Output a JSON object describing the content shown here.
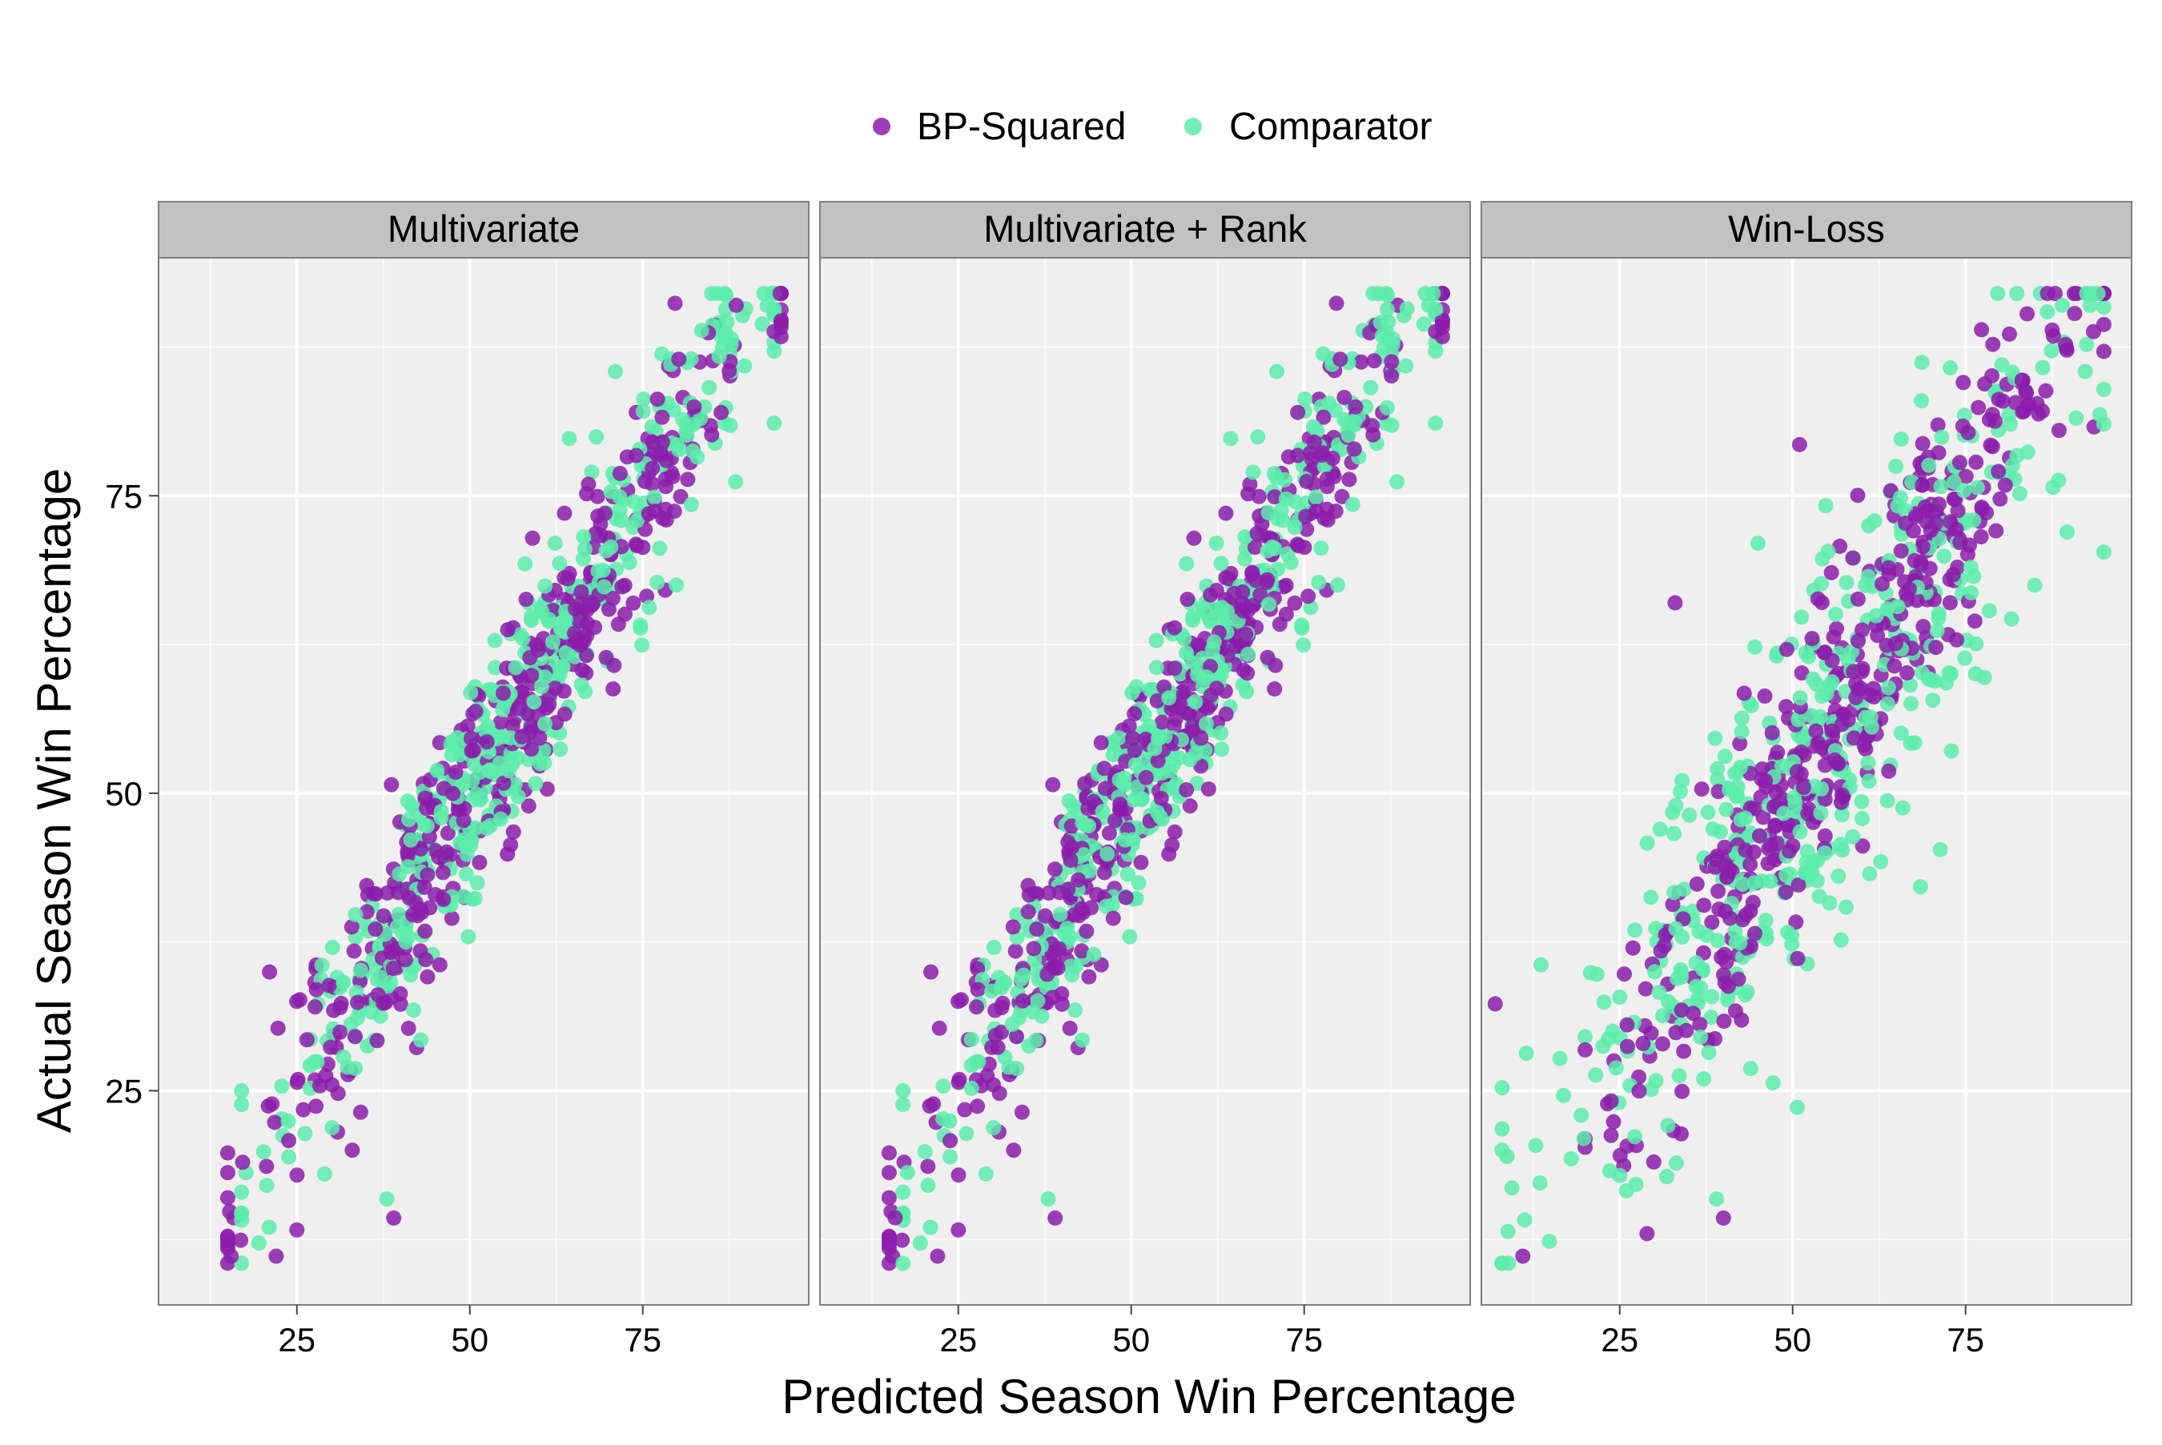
{
  "chart_data": {
    "type": "scatter",
    "title": "",
    "xlabel": "Predicted Season Win Percentage",
    "ylabel": "Actual Season Win Percentage",
    "xlim": [
      5,
      99
    ],
    "ylim": [
      7,
      95
    ],
    "x_ticks": [
      25,
      50,
      75
    ],
    "y_ticks": [
      25,
      50,
      75
    ],
    "grid": true,
    "legend_position": "top",
    "legend": [
      {
        "name": "BP-Squared",
        "color": "#8B1DAA"
      },
      {
        "name": "Comparator",
        "color": "#5CECAC"
      }
    ],
    "facets": [
      {
        "label": "Multivariate",
        "points_note_hidden": true,
        "series": [
          {
            "name": "BP-Squared",
            "generator": {
              "seed": 11,
              "n": 430,
              "slope": 0.98,
              "intercept": 1.0,
              "noise": 4.6,
              "xmin": 15,
              "xmax": 95
            }
          },
          {
            "name": "Comparator",
            "generator": {
              "seed": 29,
              "n": 430,
              "slope": 0.98,
              "intercept": 1.0,
              "noise": 4.6,
              "xmin": 17,
              "xmax": 94
            }
          }
        ],
        "anchors": [
          [
            15.5,
            11.1
          ],
          [
            19.5,
            12.2
          ],
          [
            22,
            11.1
          ],
          [
            93,
            91
          ],
          [
            94,
            88.8
          ],
          [
            87,
            82.4
          ],
          [
            87.5,
            85.5
          ],
          [
            79,
            86.5
          ],
          [
            33,
            20
          ],
          [
            38,
            15.9
          ],
          [
            39,
            14.3
          ],
          [
            29,
            18
          ],
          [
            25,
            13.3
          ],
          [
            17,
            25
          ]
        ]
      },
      {
        "label": "Multivariate + Rank",
        "series": [
          {
            "name": "BP-Squared",
            "generator": {
              "seed": 11,
              "n": 430,
              "slope": 0.98,
              "intercept": 1.0,
              "noise": 4.6,
              "xmin": 15,
              "xmax": 95
            }
          },
          {
            "name": "Comparator",
            "generator": {
              "seed": 29,
              "n": 430,
              "slope": 0.98,
              "intercept": 1.0,
              "noise": 4.6,
              "xmin": 17,
              "xmax": 94
            }
          }
        ],
        "anchors": [
          [
            15.5,
            11.1
          ],
          [
            19.5,
            12.2
          ],
          [
            22,
            11.1
          ],
          [
            93,
            91
          ],
          [
            94,
            88.8
          ],
          [
            87,
            82.4
          ],
          [
            87.5,
            85.5
          ],
          [
            79,
            86.5
          ],
          [
            33,
            20
          ],
          [
            38,
            15.9
          ],
          [
            39,
            14.3
          ],
          [
            29,
            18
          ],
          [
            25,
            13.3
          ],
          [
            17,
            25
          ]
        ]
      },
      {
        "label": "Win-Loss",
        "series": [
          {
            "name": "BP-Squared",
            "generator": {
              "seed": 47,
              "n": 430,
              "slope": 0.98,
              "intercept": 1.0,
              "noise": 5.2,
              "xmin": 20,
              "xmax": 95
            }
          },
          {
            "name": "Comparator",
            "generator": {
              "seed": 83,
              "n": 430,
              "slope": 0.85,
              "intercept": 7.5,
              "noise": 8.5,
              "xmin": 8,
              "xmax": 95
            }
          }
        ],
        "anchors": [
          [
            11,
            11.1
          ],
          [
            8,
            20
          ],
          [
            7,
            32.3
          ],
          [
            93,
            91
          ],
          [
            93.5,
            88.8
          ],
          [
            89,
            91
          ],
          [
            51,
            79.3
          ],
          [
            45,
            71
          ],
          [
            33,
            66
          ],
          [
            39,
            15.9
          ],
          [
            40,
            14.3
          ],
          [
            57,
            45.7
          ]
        ]
      }
    ]
  }
}
